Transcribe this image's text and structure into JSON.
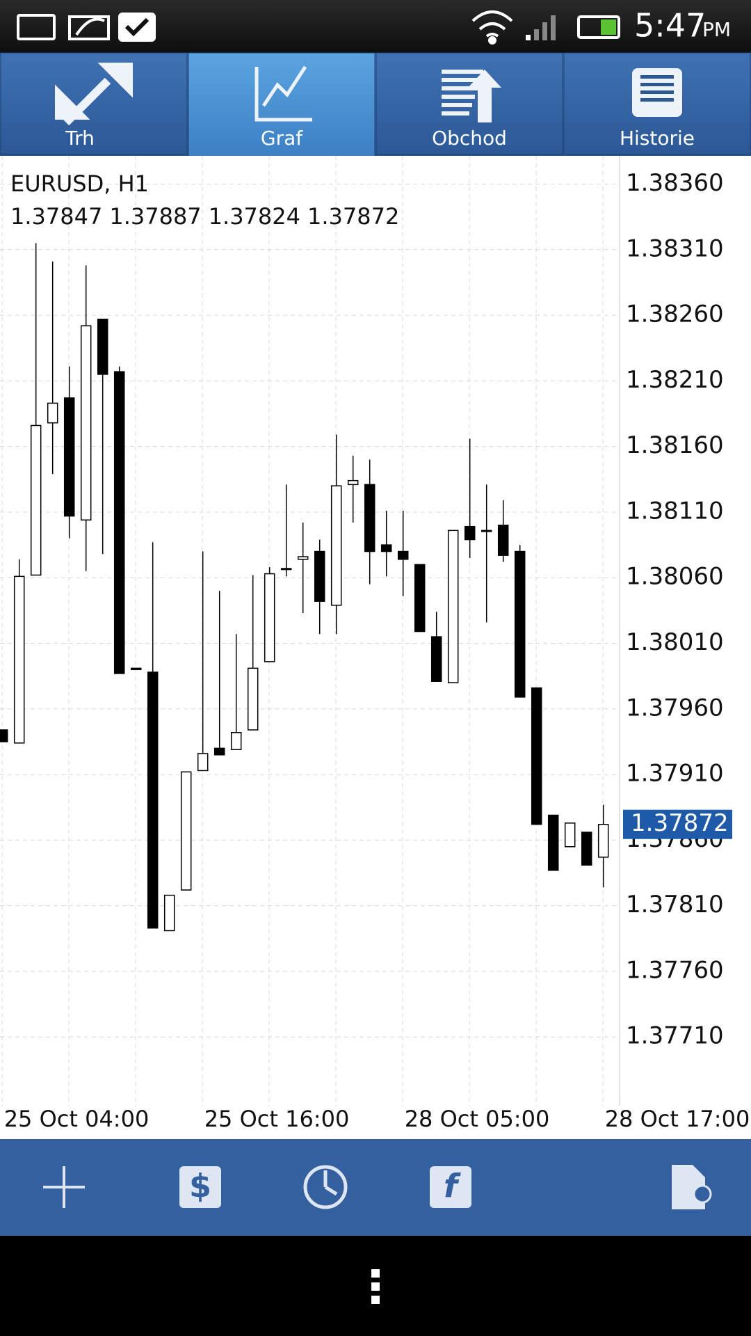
{
  "status_bar": {
    "time": "5:47",
    "ampm": "PM"
  },
  "tabs": [
    "Trh",
    "Graf",
    "Obchod",
    "Historie"
  ],
  "active_tab": 1,
  "chart_data": {
    "type": "candlestick",
    "title": "EURUSD, H1",
    "ohlc": [
      1.37847,
      1.37887,
      1.37824,
      1.37872
    ],
    "open": [
      1.37944,
      1.37934,
      1.38062,
      1.38178,
      1.38197,
      1.38104,
      1.38257,
      1.38217,
      1.37991,
      1.37988,
      1.37791,
      1.37822,
      1.37913,
      1.3793,
      1.37929,
      1.37944,
      1.37996,
      1.38067,
      1.38074,
      1.3808,
      1.38039,
      1.38131,
      1.38131,
      1.38085,
      1.3808,
      1.3807,
      1.38015,
      1.3798,
      1.38099,
      1.38096,
      1.381,
      1.3808,
      1.37976,
      1.37879,
      1.37855,
      1.37866,
      1.37847
    ],
    "high": [
      1.37944,
      1.38074,
      1.38315,
      1.38301,
      1.38221,
      1.38298,
      1.38257,
      1.38221,
      1.37991,
      1.38087,
      1.37818,
      1.37912,
      1.3808,
      1.3805,
      1.38017,
      1.38062,
      1.38068,
      1.38131,
      1.38102,
      1.38089,
      1.38169,
      1.38153,
      1.3815,
      1.38111,
      1.38111,
      1.3807,
      1.38034,
      1.38096,
      1.38166,
      1.38131,
      1.38119,
      1.38085,
      1.37976,
      1.37879,
      1.37873,
      1.37866,
      1.37887
    ],
    "low": [
      1.37935,
      1.37934,
      1.38062,
      1.38139,
      1.3809,
      1.38065,
      1.38078,
      1.37987,
      1.3799,
      1.37793,
      1.37791,
      1.37822,
      1.37913,
      1.37925,
      1.37929,
      1.37944,
      1.37996,
      1.38061,
      1.38033,
      1.38017,
      1.38017,
      1.38102,
      1.38055,
      1.38061,
      1.38046,
      1.38019,
      1.37981,
      1.3798,
      1.38075,
      1.38026,
      1.38072,
      1.37969,
      1.37872,
      1.37837,
      1.37855,
      1.37841,
      1.37824
    ],
    "close": [
      1.37935,
      1.38061,
      1.38176,
      1.38193,
      1.38107,
      1.38252,
      1.38215,
      1.37987,
      1.3799,
      1.37793,
      1.37818,
      1.37912,
      1.37926,
      1.37925,
      1.37942,
      1.37991,
      1.38063,
      1.38067,
      1.38076,
      1.38042,
      1.3813,
      1.38134,
      1.3808,
      1.3808,
      1.38074,
      1.38019,
      1.37981,
      1.38096,
      1.38089,
      1.38096,
      1.38077,
      1.37969,
      1.37872,
      1.37837,
      1.37873,
      1.37841,
      1.37872
    ],
    "up_color": "#ffffff",
    "down_color": "#000000",
    "current_price": 1.37872,
    "ylim": [
      1.3766,
      1.3838
    ],
    "yticks": [
      {
        "value": 1.3836,
        "label": "1.38360"
      },
      {
        "value": 1.3831,
        "label": "1.38310"
      },
      {
        "value": 1.3826,
        "label": "1.38260"
      },
      {
        "value": 1.3821,
        "label": "1.38210"
      },
      {
        "value": 1.3816,
        "label": "1.38160"
      },
      {
        "value": 1.3811,
        "label": "1.38110"
      },
      {
        "value": 1.3806,
        "label": "1.38060"
      },
      {
        "value": 1.3801,
        "label": "1.38010"
      },
      {
        "value": 1.3796,
        "label": "1.37960"
      },
      {
        "value": 1.3791,
        "label": "1.37910"
      },
      {
        "value": 1.3786,
        "label": "1.37860"
      },
      {
        "value": 1.3781,
        "label": "1.37810"
      },
      {
        "value": 1.3776,
        "label": "1.37760"
      },
      {
        "value": 1.3771,
        "label": "1.37710"
      }
    ],
    "xtick_labels": [
      "25 Oct 04:00",
      "25 Oct 16:00",
      "28 Oct 05:00",
      "28 Oct 17:00"
    ],
    "grid": true
  }
}
